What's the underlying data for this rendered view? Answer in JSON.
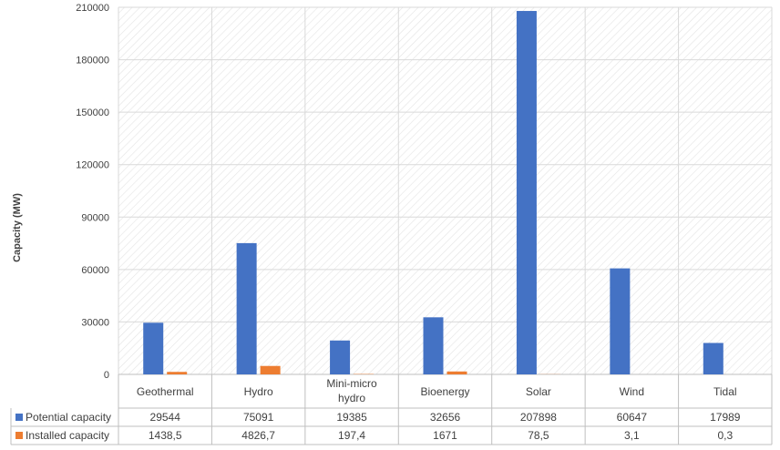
{
  "chart_data": {
    "type": "bar",
    "title": "",
    "xlabel": "",
    "ylabel": "Capacity (MW)",
    "ylim": [
      0,
      210000
    ],
    "yticks": [
      0,
      30000,
      60000,
      90000,
      120000,
      150000,
      180000,
      210000
    ],
    "categories": [
      "Geothermal",
      "Hydro",
      "Mini-micro hydro",
      "Bioenergy",
      "Solar",
      "Wind",
      "Tidal"
    ],
    "series": [
      {
        "name": "Potential capacity",
        "color": "#4472c4",
        "values": [
          29544,
          75091,
          19385,
          32656,
          207898,
          60647,
          17989
        ],
        "table_labels": [
          "29544",
          "75091",
          "19385",
          "32656",
          "207898",
          "60647",
          "17989"
        ]
      },
      {
        "name": "Installed capacity",
        "color": "#ed7d31",
        "values": [
          1438.5,
          4826.7,
          197.4,
          1671,
          78.5,
          3.1,
          0.3
        ],
        "table_labels": [
          "1438,5",
          "4826,7",
          "197,4",
          "1671",
          "78,5",
          "3,1",
          "0,3"
        ]
      }
    ],
    "grid": true,
    "legend": "data-table"
  }
}
